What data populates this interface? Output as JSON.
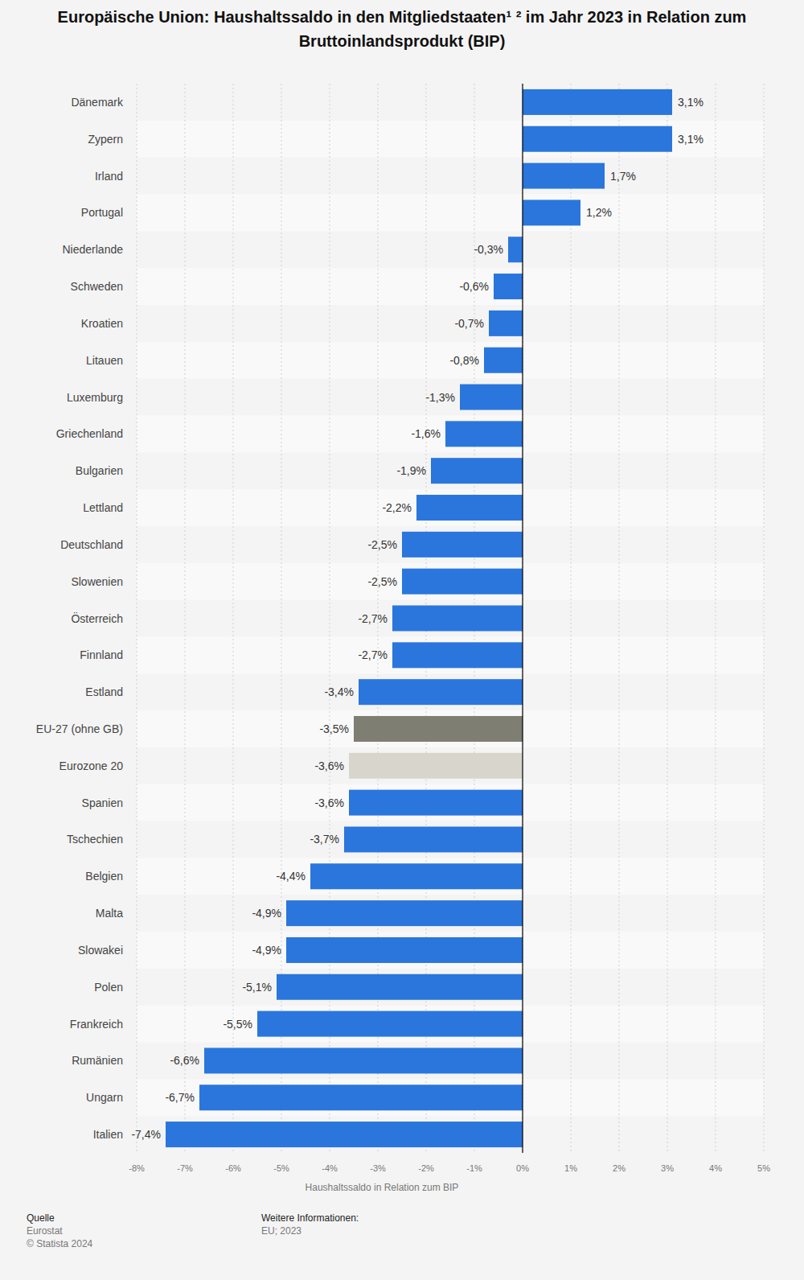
{
  "chart_data": {
    "type": "bar",
    "orientation": "horizontal",
    "title": "Europäische Union: Haushaltssaldo in den Mitgliedstaaten¹ ² im Jahr 2023 in Relation zum Bruttoinlandsprodukt (BIP)",
    "x_label": "Haushaltssaldo in Relation zum BIP",
    "categories": [
      "Dänemark",
      "Zypern",
      "Irland",
      "Portugal",
      "Niederlande",
      "Schweden",
      "Kroatien",
      "Litauen",
      "Luxemburg",
      "Griechenland",
      "Bulgarien",
      "Lettland",
      "Deutschland",
      "Slowenien",
      "Österreich",
      "Finnland",
      "Estland",
      "EU-27 (ohne GB)",
      "Eurozone 20",
      "Spanien",
      "Tschechien",
      "Belgien",
      "Malta",
      "Slowakei",
      "Polen",
      "Frankreich",
      "Rumänien",
      "Ungarn",
      "Italien"
    ],
    "values": [
      3.1,
      3.1,
      1.7,
      1.2,
      -0.3,
      -0.6,
      -0.7,
      -0.8,
      -1.3,
      -1.6,
      -1.9,
      -2.2,
      -2.5,
      -2.5,
      -2.7,
      -2.7,
      -3.4,
      -3.5,
      -3.6,
      -3.6,
      -3.7,
      -4.4,
      -4.9,
      -4.9,
      -5.1,
      -5.5,
      -6.6,
      -6.7,
      -7.4
    ],
    "value_labels": [
      "3,1%",
      "3,1%",
      "1,7%",
      "1,2%",
      "-0,3%",
      "-0,6%",
      "-0,7%",
      "-0,8%",
      "-1,3%",
      "-1,6%",
      "-1,9%",
      "-2,2%",
      "-2,5%",
      "-2,5%",
      "-2,7%",
      "-2,7%",
      "-3,4%",
      "-3,5%",
      "-3,6%",
      "-3,6%",
      "-3,7%",
      "-4,4%",
      "-4,9%",
      "-4,9%",
      "-5,1%",
      "-5,5%",
      "-6,6%",
      "-6,7%",
      "-7,4%"
    ],
    "colors": [
      "#2a76dd",
      "#2a76dd",
      "#2a76dd",
      "#2a76dd",
      "#2a76dd",
      "#2a76dd",
      "#2a76dd",
      "#2a76dd",
      "#2a76dd",
      "#2a76dd",
      "#2a76dd",
      "#2a76dd",
      "#2a76dd",
      "#2a76dd",
      "#2a76dd",
      "#2a76dd",
      "#2a76dd",
      "#7f7e72",
      "#d8d6cc",
      "#2a76dd",
      "#2a76dd",
      "#2a76dd",
      "#2a76dd",
      "#2a76dd",
      "#2a76dd",
      "#2a76dd",
      "#2a76dd",
      "#2a76dd",
      "#2a76dd"
    ],
    "xlim": [
      -8,
      5
    ],
    "xticks": [
      {
        "value": -8,
        "label": "-8%"
      },
      {
        "value": -7,
        "label": "-7%"
      },
      {
        "value": -6,
        "label": "-6%"
      },
      {
        "value": -5,
        "label": "-5%"
      },
      {
        "value": -4,
        "label": "-4%"
      },
      {
        "value": -3,
        "label": "-3%"
      },
      {
        "value": -2,
        "label": "-2%"
      },
      {
        "value": -1,
        "label": "-1%"
      },
      {
        "value": 0,
        "label": "0%"
      },
      {
        "value": 1,
        "label": "1%"
      },
      {
        "value": 2,
        "label": "2%"
      },
      {
        "value": 3,
        "label": "3%"
      },
      {
        "value": 4,
        "label": "4%"
      },
      {
        "value": 5,
        "label": "5%"
      }
    ],
    "grid": true,
    "data_labels": true,
    "source_label": "Quelle",
    "source": "Eurostat",
    "copyright": "© Statista 2024",
    "info_label": "Weitere Informationen:",
    "info": "EU; 2023"
  }
}
